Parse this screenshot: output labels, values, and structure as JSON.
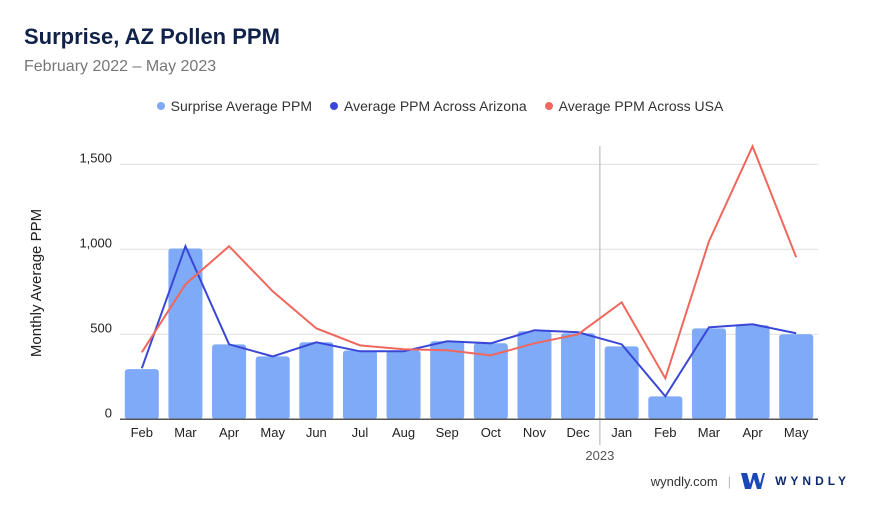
{
  "title": "Surprise, AZ Pollen PPM",
  "subtitle": "February 2022 – May 2023",
  "footer": {
    "site": "wyndly.com",
    "brand": "WYNDLY"
  },
  "colors": {
    "bars": "#7faaf8",
    "arizona": "#3a47d6",
    "usa": "#f0675d",
    "title": "#10224a"
  },
  "chart_data": {
    "type": "bar+line",
    "title": "Surprise, AZ Pollen PPM",
    "ylabel": "Monthly Average PPM",
    "xlabel": "",
    "ylim": [
      0,
      1600
    ],
    "yticks": [
      0,
      500,
      1000,
      1500
    ],
    "ytick_labels": [
      "0",
      "500",
      "1,000",
      "1,500"
    ],
    "grid": true,
    "legend": "top",
    "categories": [
      "Feb",
      "Mar",
      "Apr",
      "May",
      "Jun",
      "Jul",
      "Aug",
      "Sep",
      "Oct",
      "Nov",
      "Dec",
      "Jan",
      "Feb",
      "Mar",
      "Apr",
      "May"
    ],
    "year_marker": {
      "label": "2023",
      "before_index": 11
    },
    "series": [
      {
        "name": "Surprise Average PPM",
        "type": "bar",
        "values": [
          295,
          1005,
          441,
          370,
          453,
          405,
          405,
          459,
          447,
          518,
          506,
          429,
          135,
          535,
          553,
          500
        ]
      },
      {
        "name": "Average PPM Across Arizona",
        "type": "line",
        "values": [
          300,
          1018,
          441,
          370,
          453,
          400,
          400,
          459,
          447,
          524,
          512,
          441,
          135,
          541,
          559,
          506
        ]
      },
      {
        "name": "Average PPM Across USA",
        "type": "line",
        "values": [
          394,
          794,
          1018,
          753,
          535,
          435,
          412,
          406,
          376,
          447,
          500,
          688,
          241,
          1047,
          1606,
          953
        ]
      }
    ]
  }
}
